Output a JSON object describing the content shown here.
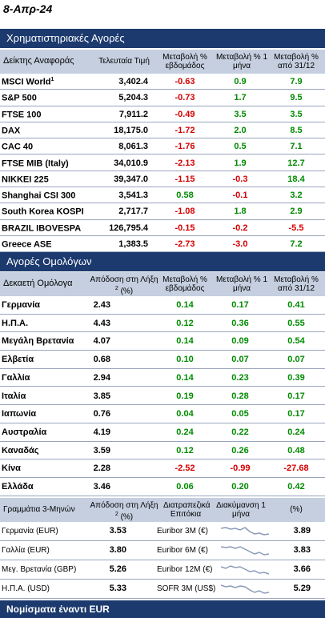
{
  "date": "8-Απρ-24",
  "stocks": {
    "title": "Χρηματιστηριακές Αγορές",
    "headers": {
      "index": "Δείκτης Αναφοράς",
      "last": "Τελευταία Τιμή",
      "week": "Μεταβολή % εβδομάδος",
      "month": "Μεταβολή % 1 μήνα",
      "ytd": "Μεταβολή % από 31/12"
    },
    "rows": [
      {
        "name": "MSCI World",
        "sup": "1",
        "last": "3,402.4",
        "week": "-0.63",
        "month": "0.9",
        "ytd": "7.9"
      },
      {
        "name": "S&P 500",
        "sup": "",
        "last": "5,204.3",
        "week": "-0.73",
        "month": "1.7",
        "ytd": "9.5"
      },
      {
        "name": "FTSE 100",
        "sup": "",
        "last": "7,911.2",
        "week": "-0.49",
        "month": "3.5",
        "ytd": "3.5"
      },
      {
        "name": "DAX",
        "sup": "",
        "last": "18,175.0",
        "week": "-1.72",
        "month": "2.0",
        "ytd": "8.5"
      },
      {
        "name": "CAC 40",
        "sup": "",
        "last": "8,061.3",
        "week": "-1.76",
        "month": "0.5",
        "ytd": "7.1"
      },
      {
        "name": "FTSE MIB (Italy)",
        "sup": "",
        "last": "34,010.9",
        "week": "-2.13",
        "month": "1.9",
        "ytd": "12.7"
      },
      {
        "name": "NIKKEI 225",
        "sup": "",
        "last": "39,347.0",
        "week": "-1.15",
        "month": "-0.3",
        "ytd": "18.4"
      },
      {
        "name": "Shanghai CSI 300",
        "sup": "",
        "last": "3,541.3",
        "week": "0.58",
        "month": "-0.1",
        "ytd": "3.2"
      },
      {
        "name": "South Korea KOSPI",
        "sup": "",
        "last": "2,717.7",
        "week": "-1.08",
        "month": "1.8",
        "ytd": "2.9"
      },
      {
        "name": "BRAZIL IBOVESPA",
        "sup": "",
        "last": "126,795.4",
        "week": "-0.15",
        "month": "-0.2",
        "ytd": "-5.5"
      },
      {
        "name": "Greece ASE",
        "sup": "",
        "last": "1,383.5",
        "week": "-2.73",
        "month": "-3.0",
        "ytd": "7.2"
      }
    ]
  },
  "bonds": {
    "title": "Αγορές Ομολόγων",
    "headers": {
      "name": "Δεκαετή Ομόλογα",
      "yield": "Απόδοση στη Λήξη",
      "yield_sup": "2",
      "yield_unit": "(%)",
      "week": "Μεταβολή % εβδομάδος",
      "month": "Μεταβολή % 1 μήνα",
      "ytd": "Μεταβολή % από 31/12"
    },
    "rows": [
      {
        "name": "Γερμανία",
        "yield": "2.43",
        "week": "0.14",
        "month": "0.17",
        "ytd": "0.41"
      },
      {
        "name": "Η.Π.Α.",
        "yield": "4.43",
        "week": "0.12",
        "month": "0.36",
        "ytd": "0.55"
      },
      {
        "name": "Μεγάλη Βρετανία",
        "yield": "4.07",
        "week": "0.14",
        "month": "0.09",
        "ytd": "0.54"
      },
      {
        "name": "Ελβετία",
        "yield": "0.68",
        "week": "0.10",
        "month": "0.07",
        "ytd": "0.07"
      },
      {
        "name": "Γαλλία",
        "yield": "2.94",
        "week": "0.14",
        "month": "0.23",
        "ytd": "0.39"
      },
      {
        "name": "Ιταλία",
        "yield": "3.85",
        "week": "0.19",
        "month": "0.28",
        "ytd": "0.17"
      },
      {
        "name": "Ιαπωνία",
        "yield": "0.76",
        "week": "0.04",
        "month": "0.05",
        "ytd": "0.17"
      },
      {
        "name": "Αυστραλία",
        "yield": "4.19",
        "week": "0.24",
        "month": "0.22",
        "ytd": "0.24"
      },
      {
        "name": "Καναδάς",
        "yield": "3.59",
        "week": "0.12",
        "month": "0.26",
        "ytd": "0.48"
      },
      {
        "name": "Κίνα",
        "yield": "2.28",
        "week": "-2.52",
        "month": "-0.99",
        "ytd": "-27.68"
      },
      {
        "name": "Ελλάδα",
        "yield": "3.46",
        "week": "0.06",
        "month": "0.20",
        "ytd": "0.42"
      }
    ]
  },
  "bills": {
    "headers": {
      "name": "Γραμμάτια 3-Μηνών",
      "yield": "Απόδοση στη Λήξη",
      "yield_sup": "2",
      "yield_unit": "(%)",
      "interbank": "Διατραπεζικά Επιτόκια",
      "trend": "Διακύμανση 1 μήνα",
      "pct": "(%)"
    },
    "rows": [
      {
        "name": "Γερμανία (EUR)",
        "yield": "3.53",
        "rate": "Euribor 3M (€)",
        "value": "3.89"
      },
      {
        "name": "Γαλλία (EUR)",
        "yield": "3.80",
        "rate": "Euribor 6M (€)",
        "value": "3.83"
      },
      {
        "name": "Μεγ. Βρετανία (GBP)",
        "yield": "5.26",
        "rate": "Euribor 12M (€)",
        "value": "3.66"
      },
      {
        "name": "Η.Π.Α. (USD)",
        "yield": "5.33",
        "rate": "SOFR 3M (US$)",
        "value": "5.29"
      }
    ]
  },
  "fx": {
    "title": "Νομίσματα έναντι EUR"
  },
  "colors": {
    "header_bar": "#1c3a6e",
    "subheader": "#c5cfe0",
    "positive": "#008a00",
    "negative": "#d40000"
  }
}
